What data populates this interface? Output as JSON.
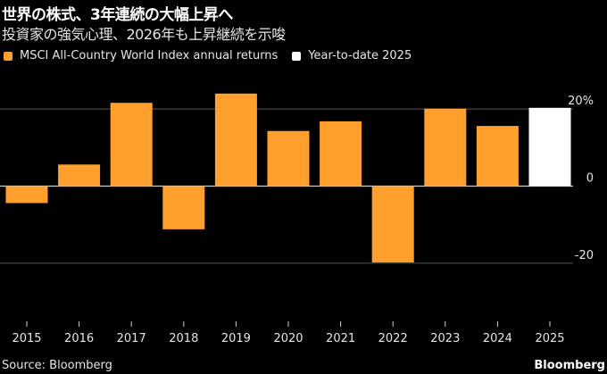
{
  "header": {
    "title": "世界の株式、3年連続の大幅上昇へ",
    "subtitle": "投資家の強気心理、2026年も上昇継続を示唆"
  },
  "legend": [
    {
      "label": "MSCI All-Country World Index annual returns",
      "color": "#ffa02e"
    },
    {
      "label": "Year-to-date 2025",
      "color": "#ffffff"
    }
  ],
  "footer": {
    "source": "Source: Bloomberg",
    "brand": "Bloomberg"
  },
  "chart_data": {
    "type": "bar",
    "title": "世界の株式、3年連続の大幅上昇へ",
    "subtitle": "投資家の強気心理、2026年も上昇継続を示唆",
    "xlabel": "",
    "ylabel": "",
    "categories": [
      "2015",
      "2016",
      "2017",
      "2018",
      "2019",
      "2020",
      "2021",
      "2022",
      "2023",
      "2024",
      "2025"
    ],
    "series": [
      {
        "name": "MSCI All-Country World Index annual returns",
        "color": "#ffa02e",
        "values": [
          -4.4,
          5.6,
          21.6,
          -11.2,
          24.0,
          14.3,
          16.8,
          -19.8,
          20.1,
          15.6,
          null
        ]
      },
      {
        "name": "Year-to-date 2025",
        "color": "#ffffff",
        "values": [
          null,
          null,
          null,
          null,
          null,
          null,
          null,
          null,
          null,
          null,
          20.3
        ]
      }
    ],
    "yticks": [
      20,
      0,
      -20
    ],
    "ytick_labels": [
      "20%",
      "0",
      "-20"
    ],
    "ylim": [
      -20,
      26
    ],
    "grid": true,
    "legend_position": "top-left"
  }
}
